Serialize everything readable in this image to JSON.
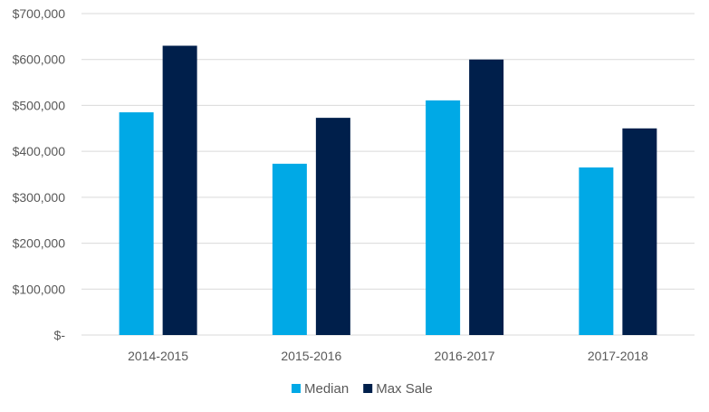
{
  "chart_data": {
    "type": "bar",
    "title": "",
    "xlabel": "",
    "ylabel": "",
    "categories": [
      "2014-2015",
      "2015-2016",
      "2016-2017",
      "2017-2018"
    ],
    "series": [
      {
        "name": "Median",
        "color": "#00A9E6",
        "values": [
          485000,
          373000,
          511000,
          365000
        ]
      },
      {
        "name": "Max Sale",
        "color": "#001F4B",
        "values": [
          630000,
          473000,
          600000,
          450000
        ]
      }
    ],
    "ylim": [
      0,
      700000
    ],
    "y_ticks": [
      0,
      100000,
      200000,
      300000,
      400000,
      500000,
      600000,
      700000
    ],
    "y_tick_labels": [
      "$-",
      "$100,000",
      "$200,000",
      "$300,000",
      "$400,000",
      "$500,000",
      "$600,000",
      "$700,000"
    ],
    "grid": true,
    "legend_position": "bottom",
    "colors": {
      "gridline": "#D9D9D9",
      "text": "#595959"
    }
  }
}
